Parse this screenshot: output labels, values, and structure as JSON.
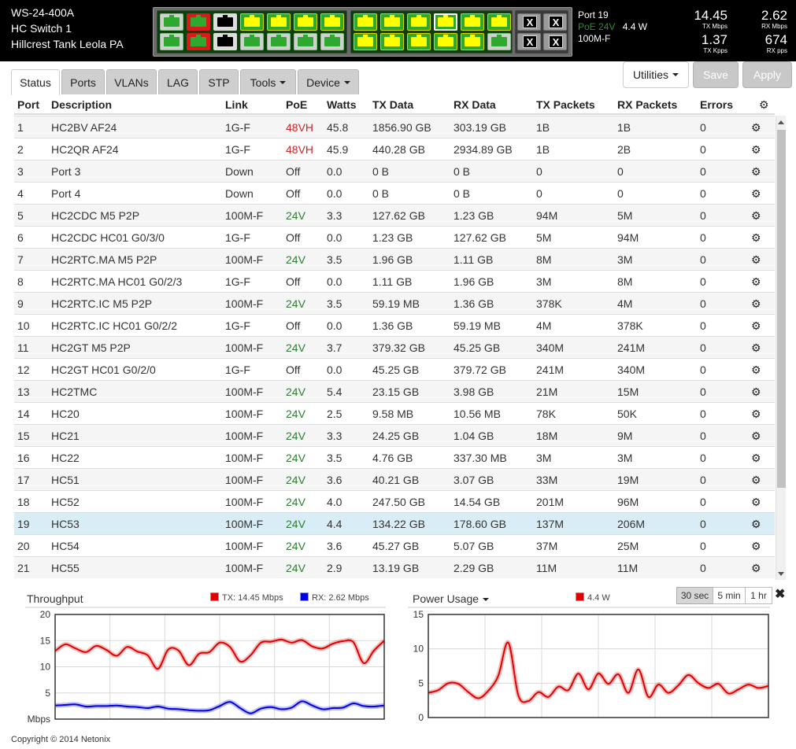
{
  "device": {
    "model": "WS-24-400A",
    "name": "HC Switch 1",
    "location": "Hillcrest Tank Leola PA"
  },
  "port_panel": {
    "group1": [
      {
        "top": "green",
        "bottom": "green"
      },
      {
        "top": "red-green",
        "bottom": "red-green"
      },
      {
        "top": "black",
        "bottom": "black"
      },
      {
        "top": "yellow",
        "bottom": "green"
      },
      {
        "top": "yellow",
        "bottom": "green"
      },
      {
        "top": "yellow",
        "bottom": "green"
      },
      {
        "top": "yellow",
        "bottom": "green"
      }
    ],
    "group2": [
      {
        "top": "yellow",
        "bottom": "yellow"
      },
      {
        "top": "yellow",
        "bottom": "yellow"
      },
      {
        "top": "yellow",
        "bottom": "yellow"
      },
      {
        "top": "yellow",
        "bottom": "yellow",
        "selected_top": true
      },
      {
        "top": "yellow",
        "bottom": "yellow"
      },
      {
        "top": "yellow",
        "bottom": "green"
      }
    ],
    "sfp_label": "X"
  },
  "port_info": {
    "port": "Port 19",
    "poe": "PoE 24V",
    "watts": "4.4 W",
    "link": "100M-F"
  },
  "stats": {
    "tx_mbps": "14.45",
    "tx_mbps_label": "TX Mbps",
    "rx_mbps": "2.62",
    "rx_mbps_label": "RX Mbps",
    "tx_kpps": "1.37",
    "tx_kpps_label": "TX Kpps",
    "rx_pps": "674",
    "rx_pps_label": "RX pps"
  },
  "tabs": [
    "Status",
    "Ports",
    "VLANs",
    "LAG",
    "STP",
    "Tools",
    "Device"
  ],
  "buttons": {
    "utilities": "Utilities",
    "save": "Save",
    "apply": "Apply"
  },
  "table": {
    "headers": [
      "Port",
      "Description",
      "Link",
      "PoE",
      "Watts",
      "TX Data",
      "RX Data",
      "TX Packets",
      "RX Packets",
      "Errors"
    ],
    "rows": [
      [
        "1",
        "HC2BV AF24",
        "1G-F",
        "48VH",
        "45.8",
        "1856.90 GB",
        "303.19 GB",
        "1B",
        "1B",
        "0"
      ],
      [
        "2",
        "HC2QR AF24",
        "1G-F",
        "48VH",
        "45.9",
        "440.28 GB",
        "2934.89 GB",
        "1B",
        "2B",
        "0"
      ],
      [
        "3",
        "Port 3",
        "Down",
        "Off",
        "0.0",
        "0 B",
        "0 B",
        "0",
        "0",
        "0"
      ],
      [
        "4",
        "Port 4",
        "Down",
        "Off",
        "0.0",
        "0 B",
        "0 B",
        "0",
        "0",
        "0"
      ],
      [
        "5",
        "HC2CDC M5 P2P",
        "100M-F",
        "24V",
        "3.3",
        "127.62 GB",
        "1.23 GB",
        "94M",
        "5M",
        "0"
      ],
      [
        "6",
        "HC2CDC HC01 G0/3/0",
        "1G-F",
        "Off",
        "0.0",
        "1.23 GB",
        "127.62 GB",
        "5M",
        "94M",
        "0"
      ],
      [
        "7",
        "HC2RTC.MA M5 P2P",
        "100M-F",
        "24V",
        "3.5",
        "1.96 GB",
        "1.11 GB",
        "8M",
        "3M",
        "0"
      ],
      [
        "8",
        "HC2RTC.MA HC01 G0/2/3",
        "1G-F",
        "Off",
        "0.0",
        "1.11 GB",
        "1.96 GB",
        "3M",
        "8M",
        "0"
      ],
      [
        "9",
        "HC2RTC.IC M5 P2P",
        "100M-F",
        "24V",
        "3.5",
        "59.19 MB",
        "1.36 GB",
        "378K",
        "4M",
        "0"
      ],
      [
        "10",
        "HC2RTC.IC HC01 G0/2/2",
        "1G-F",
        "Off",
        "0.0",
        "1.36 GB",
        "59.19 MB",
        "4M",
        "378K",
        "0"
      ],
      [
        "11",
        "HC2GT M5 P2P",
        "100M-F",
        "24V",
        "3.7",
        "379.32 GB",
        "45.25 GB",
        "340M",
        "241M",
        "0"
      ],
      [
        "12",
        "HC2GT HC01 G0/2/0",
        "1G-F",
        "Off",
        "0.0",
        "45.25 GB",
        "379.72 GB",
        "241M",
        "340M",
        "0"
      ],
      [
        "13",
        "HC2TMC",
        "100M-F",
        "24V",
        "5.4",
        "23.15 GB",
        "3.98 GB",
        "21M",
        "15M",
        "0"
      ],
      [
        "14",
        "HC20",
        "100M-F",
        "24V",
        "2.5",
        "9.58 MB",
        "10.56 MB",
        "78K",
        "50K",
        "0"
      ],
      [
        "15",
        "HC21",
        "100M-F",
        "24V",
        "3.3",
        "24.25 GB",
        "1.04 GB",
        "18M",
        "9M",
        "0"
      ],
      [
        "16",
        "HC22",
        "100M-F",
        "24V",
        "3.5",
        "4.76 GB",
        "337.30 MB",
        "3M",
        "3M",
        "0"
      ],
      [
        "17",
        "HC51",
        "100M-F",
        "24V",
        "3.6",
        "40.21 GB",
        "3.07 GB",
        "33M",
        "19M",
        "0"
      ],
      [
        "18",
        "HC52",
        "100M-F",
        "24V",
        "4.0",
        "247.50 GB",
        "14.54 GB",
        "201M",
        "96M",
        "0"
      ],
      [
        "19",
        "HC53",
        "100M-F",
        "24V",
        "4.4",
        "134.22 GB",
        "178.60 GB",
        "137M",
        "206M",
        "0"
      ],
      [
        "20",
        "HC54",
        "100M-F",
        "24V",
        "3.6",
        "45.27 GB",
        "5.07 GB",
        "37M",
        "25M",
        "0"
      ],
      [
        "21",
        "HC55",
        "100M-F",
        "24V",
        "2.9",
        "13.19 GB",
        "2.29 GB",
        "11M",
        "11M",
        "0"
      ]
    ],
    "selected_port": "19"
  },
  "time_buttons": [
    "30 sec",
    "5 min",
    "1 hr"
  ],
  "footer": "Copyright © 2014 Netonix",
  "colors": {
    "red": "#e00000",
    "blue": "#0000e0",
    "poe_red": "#c62828",
    "poe_green": "#2e7d32"
  },
  "chart_data": [
    {
      "type": "line",
      "title": "Throughput",
      "ylabel": "Mbps",
      "ylim": [
        0,
        20
      ],
      "yticks": [
        "20",
        "15",
        "10",
        "5"
      ],
      "series": [
        {
          "name": "TX: 14.45 Mbps",
          "color": "#e00000",
          "values": [
            13,
            14.3,
            13.5,
            12.8,
            14,
            13.2,
            12.1,
            13.8,
            12.9,
            12.2,
            9.6,
            13.3,
            13.1,
            10.3,
            12.5,
            12.8,
            14.6,
            13.8,
            11,
            12.2,
            14.6,
            14.8,
            15.2,
            14.6,
            15.1,
            13.9,
            13.5,
            14.4,
            14.9,
            14.7,
            10.7,
            13.1,
            15
          ]
        },
        {
          "name": "RX: 2.62 Mbps",
          "color": "#0000e0",
          "values": [
            2.6,
            2.7,
            2.8,
            2.4,
            2.5,
            2.5,
            2.6,
            2.4,
            2.3,
            2.1,
            2.4,
            2.0,
            1.9,
            1.7,
            1.6,
            1.7,
            2.5,
            3.3,
            2.1,
            1.1,
            2.0,
            2.3,
            1.9,
            2.2,
            3.4,
            2.6,
            1.9,
            2.1,
            2.2,
            3.0,
            2.5,
            2.4,
            2.6
          ]
        }
      ]
    },
    {
      "type": "line",
      "title": "Power Usage",
      "ylim": [
        0,
        15
      ],
      "yticks": [
        "15",
        "10",
        "5",
        "0"
      ],
      "series": [
        {
          "name": "4.4 W",
          "color": "#e00000",
          "values": [
            3.6,
            4.0,
            5.0,
            4.9,
            3.7,
            2.8,
            3.9,
            6.1,
            10.9,
            3.2,
            2.4,
            3.7,
            3.0,
            4.5,
            4.0,
            6.4,
            4.1,
            6.4,
            4.9,
            6.3,
            3.6,
            7.0,
            3.0,
            4.8,
            3.6,
            4.7,
            6.2,
            5.0,
            4.3,
            4.9,
            3.5,
            4.1,
            4.8,
            4.3,
            4.6
          ]
        }
      ]
    }
  ]
}
